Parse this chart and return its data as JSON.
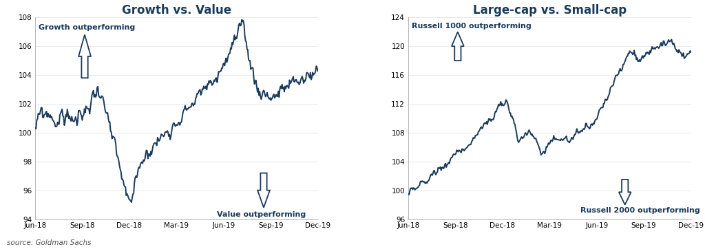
{
  "chart1": {
    "title": "Growth vs. Value",
    "ylim": [
      94,
      108
    ],
    "yticks": [
      94,
      96,
      98,
      100,
      102,
      104,
      106,
      108
    ],
    "line_color": "#1a3a5c",
    "arrow_up_text": "Growth outperforming",
    "arrow_down_text": "Value outperforming"
  },
  "chart2": {
    "title": "Large-cap vs. Small-cap",
    "ylim": [
      96,
      124
    ],
    "yticks": [
      96,
      100,
      104,
      108,
      112,
      116,
      120,
      124
    ],
    "line_color": "#1a3a5c",
    "arrow_up_text": "Russell 1000 outperforming",
    "arrow_down_text": "Russell 2000 outperforming"
  },
  "x_tick_labels": [
    "Jun-18",
    "Sep-18",
    "Dec-18",
    "Mar-19",
    "Jun-19",
    "Sep-19",
    "Dec-19"
  ],
  "title_fontsize": 12,
  "annotation_fontsize": 8,
  "source_text": "source: Goldman Sachs",
  "line_width": 1.4,
  "background_color": "#ffffff",
  "title_color": "#1a3a5c",
  "annotation_color": "#1a3a5c"
}
